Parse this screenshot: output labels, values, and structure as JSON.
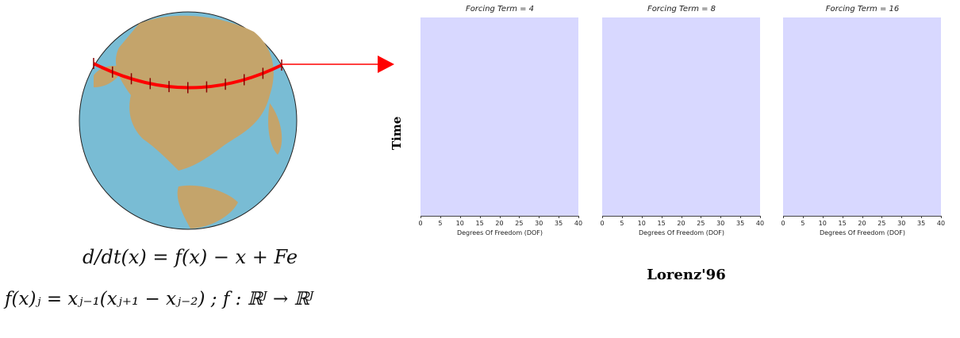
{
  "equations": {
    "line1": "d/dt(x) = f(x) − x + Fe",
    "line2": "f(x)ⱼ = xⱼ₋₁(xⱼ₊₁ − xⱼ₋₂)  ;  f : ℝᴶ → ℝᴶ"
  },
  "ylabel": "Time",
  "caption": "Lorenz'96",
  "colors": {
    "panel_fill": "#d8d8ff",
    "ocean": "#79bcd4",
    "land": "#c4a46b",
    "arc": "#ff0000"
  },
  "icons": {
    "globe": "globe-icon",
    "arrow": "arrow-right-icon"
  },
  "chart_data": [
    {
      "type": "heatmap",
      "title": "Forcing Term = 4",
      "xlabel": "Degrees Of Freedom (DOF)",
      "ylabel": "Time",
      "xlim": [
        0,
        40
      ],
      "xticks": [
        "0",
        "5",
        "10",
        "15",
        "20",
        "25",
        "30",
        "35",
        "40"
      ]
    },
    {
      "type": "heatmap",
      "title": "Forcing Term = 8",
      "xlabel": "Degrees Of Freedom (DOF)",
      "ylabel": "",
      "xlim": [
        0,
        40
      ],
      "xticks": [
        "0",
        "5",
        "10",
        "15",
        "20",
        "25",
        "30",
        "35",
        "40"
      ]
    },
    {
      "type": "heatmap",
      "title": "Forcing Term = 16",
      "xlabel": "Degrees Of Freedom (DOF)",
      "ylabel": "",
      "xlim": [
        0,
        40
      ],
      "xticks": [
        "0",
        "5",
        "10",
        "15",
        "20",
        "25",
        "30",
        "35",
        "40"
      ]
    }
  ]
}
